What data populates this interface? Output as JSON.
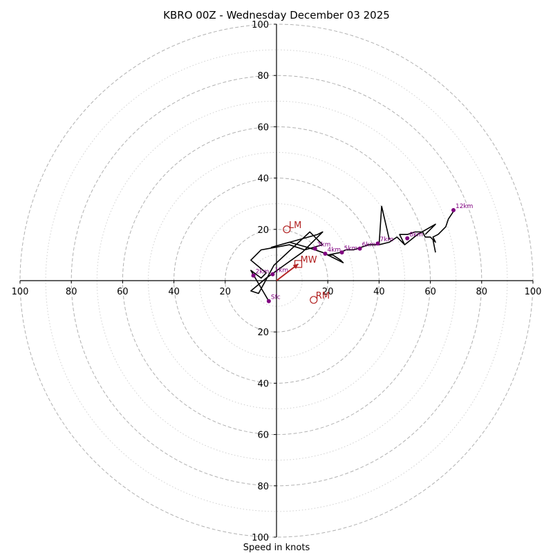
{
  "chart_data": {
    "type": "scatter",
    "title": "KBRO 00Z - Wednesday December 03 2025",
    "xlabel": "Speed in knots",
    "ylabel": "",
    "xlim": [
      -100,
      100
    ],
    "ylim": [
      -100,
      100
    ],
    "units": "knots",
    "ring_major": [
      20,
      40,
      60,
      80,
      100
    ],
    "ring_minor": [
      10,
      30,
      50,
      70,
      90
    ],
    "x_tick_values": [
      -100,
      -80,
      -60,
      -40,
      -20,
      20,
      40,
      60,
      80,
      100
    ],
    "x_tick_labels": [
      "100",
      "80",
      "60",
      "40",
      "20",
      "20",
      "40",
      "60",
      "80",
      "100"
    ],
    "y_tick_values": [
      100,
      80,
      60,
      40,
      20,
      -20,
      -40,
      -60,
      -80,
      -100
    ],
    "y_tick_labels": [
      "100",
      "80",
      "60",
      "40",
      "20",
      "20",
      "40",
      "60",
      "80",
      "100"
    ],
    "hodograph_trace": [
      [
        -3,
        -8
      ],
      [
        -10,
        4
      ],
      [
        -6,
        1
      ],
      [
        -4,
        3
      ],
      [
        -10,
        8
      ],
      [
        -6,
        12
      ],
      [
        5,
        14
      ],
      [
        11,
        12
      ],
      [
        18,
        14
      ],
      [
        13,
        19
      ],
      [
        -1,
        6
      ],
      [
        -7,
        -5
      ],
      [
        -10,
        -4
      ],
      [
        -4,
        1
      ],
      [
        3,
        6
      ],
      [
        10,
        11
      ],
      [
        18,
        19
      ],
      [
        16,
        18
      ],
      [
        -2,
        13
      ],
      [
        5,
        15
      ],
      [
        12,
        13
      ],
      [
        15,
        12
      ],
      [
        18,
        11
      ],
      [
        22,
        9
      ],
      [
        26,
        7
      ],
      [
        25,
        8
      ],
      [
        22,
        10
      ],
      [
        20,
        10
      ],
      [
        25,
        11
      ],
      [
        27,
        12
      ],
      [
        30,
        12
      ],
      [
        33,
        13
      ],
      [
        36,
        14
      ],
      [
        40,
        14
      ],
      [
        44,
        15
      ],
      [
        47,
        17
      ],
      [
        50,
        14
      ],
      [
        48,
        18
      ],
      [
        51,
        18
      ],
      [
        54,
        19
      ],
      [
        57,
        19
      ],
      [
        58,
        17
      ],
      [
        60,
        17
      ],
      [
        62,
        15
      ],
      [
        61,
        17
      ],
      [
        63,
        18
      ],
      [
        66,
        21
      ],
      [
        67,
        24
      ],
      [
        69,
        27
      ]
    ],
    "height_points": [
      {
        "label": "Sfc",
        "x": -3,
        "y": -8
      },
      {
        "label": "1km",
        "x": -1.5,
        "y": 2.5
      },
      {
        "label": "2km",
        "x": -9,
        "y": 2
      },
      {
        "label": "3km",
        "x": 15,
        "y": 12.5
      },
      {
        "label": "4km",
        "x": 19,
        "y": 10.5
      },
      {
        "label": "5km",
        "x": 25.5,
        "y": 11
      },
      {
        "label": "6km",
        "x": 32.5,
        "y": 12.5
      },
      {
        "label": "7km",
        "x": 39.5,
        "y": 14.5
      },
      {
        "label": "8km",
        "x": 51,
        "y": 16.5
      },
      {
        "label": "12km",
        "x": 69,
        "y": 27.5
      }
    ],
    "extra_trace_segments": [
      [
        [
          40,
          14
        ],
        [
          41,
          29
        ],
        [
          44,
          16
        ]
      ],
      [
        [
          50,
          14
        ],
        [
          55,
          18
        ],
        [
          62,
          22
        ],
        [
          58,
          18
        ]
      ],
      [
        [
          61,
          16
        ],
        [
          62,
          11
        ]
      ]
    ],
    "motion_points": [
      {
        "label": "LM",
        "x": 4,
        "y": 20,
        "marker": "circle"
      },
      {
        "label": "RM",
        "x": 14.5,
        "y": -7.5,
        "marker": "circle"
      },
      {
        "label": "MW",
        "x": 8.5,
        "y": 6.5,
        "marker": "square"
      }
    ],
    "motion_vector": {
      "from": [
        0,
        0
      ],
      "to": [
        8.5,
        6.5
      ]
    },
    "colors": {
      "trace": "#000000",
      "points": "#800080",
      "motion": "#b22222",
      "grid": "#b0b0b0"
    }
  }
}
